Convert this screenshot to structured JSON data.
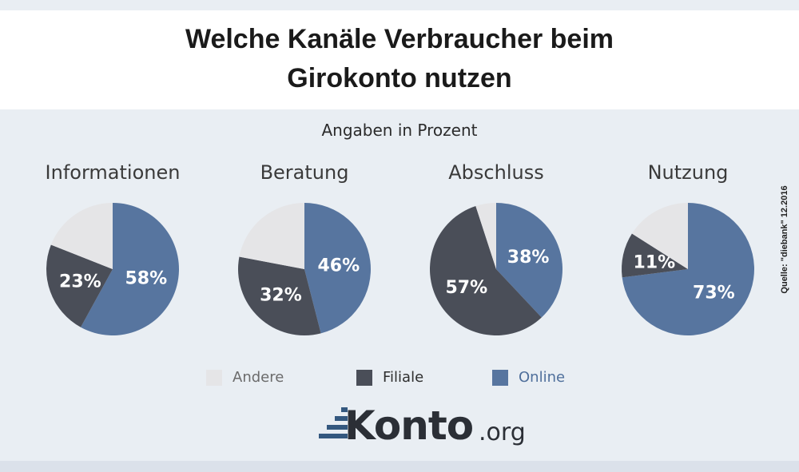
{
  "header": {
    "title_line1": "Welche Kanäle Verbraucher beim",
    "title_line2": "Girokonto nutzen"
  },
  "chart_data": {
    "type": "pie",
    "subtitle": "Angaben in Prozent",
    "categories": [
      "Andere",
      "Filiale",
      "Online"
    ],
    "colors": {
      "Andere": "#e5e5e7",
      "Filiale": "#4a4e58",
      "Online": "#57759f"
    },
    "pies": [
      {
        "title": "Informationen",
        "values": {
          "Online": 58,
          "Filiale": 23,
          "Andere": 19
        },
        "labels": {
          "Online": "58%",
          "Filiale": "23%"
        }
      },
      {
        "title": "Beratung",
        "values": {
          "Online": 46,
          "Filiale": 32,
          "Andere": 22
        },
        "labels": {
          "Online": "46%",
          "Filiale": "32%"
        }
      },
      {
        "title": "Abschluss",
        "values": {
          "Online": 38,
          "Filiale": 57,
          "Andere": 5
        },
        "labels": {
          "Online": "38%",
          "Filiale": "57%"
        }
      },
      {
        "title": "Nutzung",
        "values": {
          "Online": 73,
          "Filiale": 11,
          "Andere": 16
        },
        "labels": {
          "Online": "73%",
          "Filiale": "11%"
        }
      }
    ],
    "legend": [
      {
        "name": "Andere",
        "color": "#e5e5e7"
      },
      {
        "name": "Filiale",
        "color": "#4a4e58"
      },
      {
        "name": "Online",
        "color": "#57759f"
      }
    ],
    "legend_position": "bottom"
  },
  "source": "Quelle: \"diebank\" 12.2016",
  "logo": {
    "main": "Konto",
    "tld": ".org"
  }
}
